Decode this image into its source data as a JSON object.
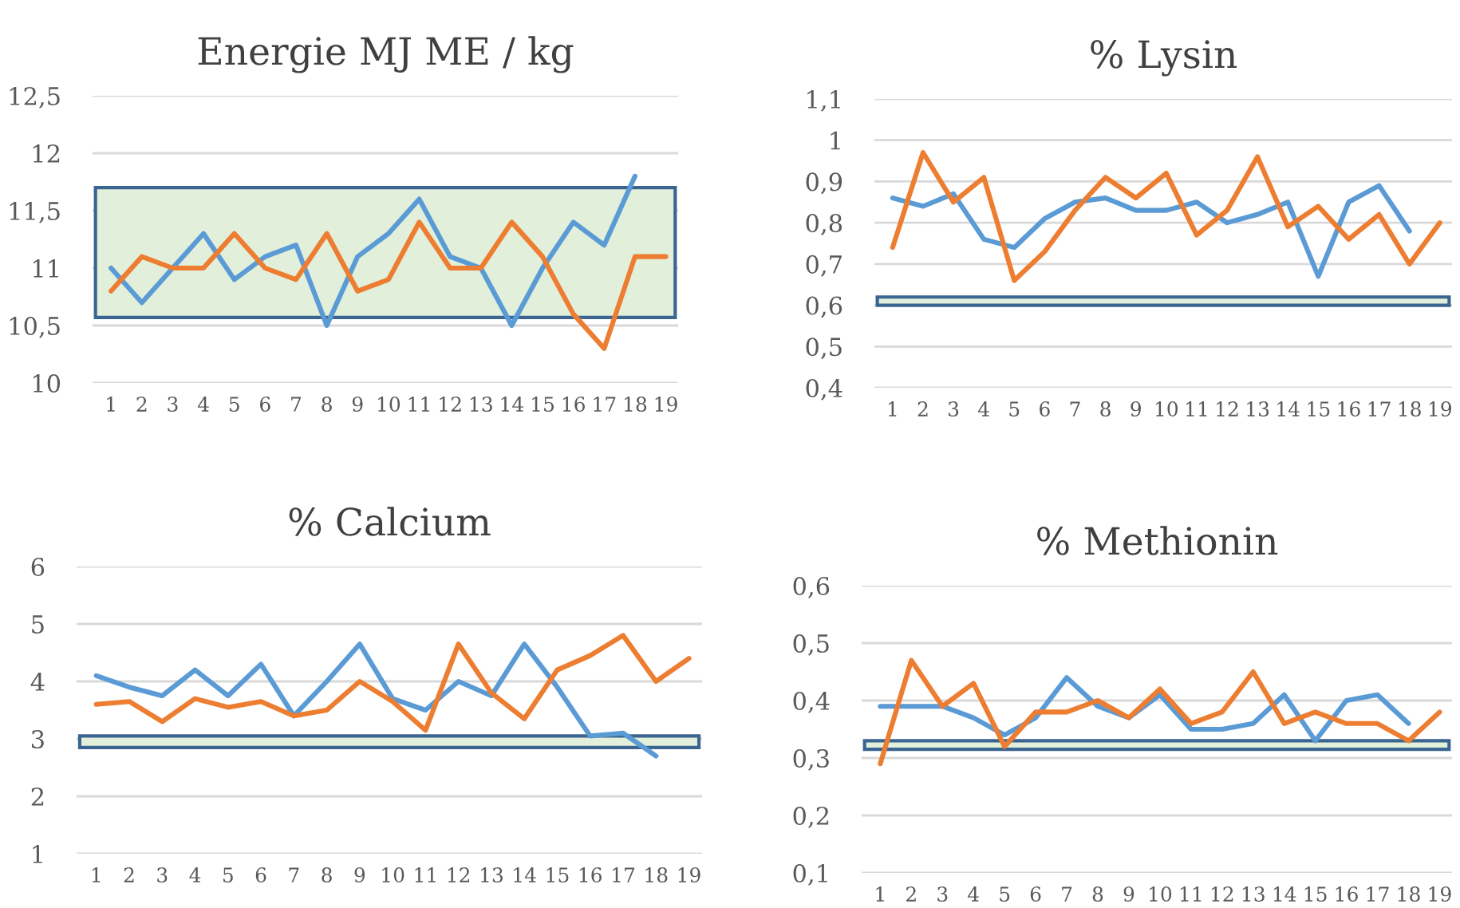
{
  "chart_data": [
    {
      "type": "line",
      "title": "Energie MJ ME / kg",
      "categories": [
        "1",
        "2",
        "3",
        "4",
        "5",
        "6",
        "7",
        "8",
        "9",
        "10",
        "11",
        "12",
        "13",
        "14",
        "15",
        "16",
        "17",
        "18",
        "19"
      ],
      "series": [
        {
          "color": "#5b9bd5",
          "values": [
            11.0,
            10.7,
            11.0,
            11.3,
            10.9,
            11.1,
            11.2,
            10.5,
            11.1,
            11.3,
            11.6,
            11.1,
            11.0,
            10.5,
            11.0,
            11.4,
            11.2,
            11.8,
            null
          ]
        },
        {
          "color": "#ed7d31",
          "values": [
            10.8,
            11.1,
            11.0,
            11.0,
            11.3,
            11.0,
            10.9,
            11.3,
            10.8,
            10.9,
            11.4,
            11.0,
            11.0,
            11.4,
            11.1,
            10.6,
            10.3,
            11.1,
            11.1
          ]
        }
      ],
      "ylim": [
        10,
        12.5
      ],
      "yticks": [
        10,
        {
          "value": 10.5,
          "label": "10,5"
        },
        11,
        {
          "value": 11.5,
          "label": "11,5"
        },
        12,
        {
          "value": 12.5,
          "label": "12,5"
        }
      ],
      "bands": [
        {
          "axis": "y",
          "from": 10.57,
          "to": 11.7,
          "color": "#e2efda"
        }
      ],
      "grid": "y",
      "legend": false
    },
    {
      "type": "line",
      "title": "% Lysin",
      "categories": [
        "1",
        "2",
        "3",
        "4",
        "5",
        "6",
        "7",
        "8",
        "9",
        "10",
        "11",
        "12",
        "13",
        "14",
        "15",
        "16",
        "17",
        "18",
        "19"
      ],
      "series": [
        {
          "color": "#5b9bd5",
          "values": [
            0.86,
            0.84,
            0.87,
            0.76,
            0.74,
            0.81,
            0.85,
            0.86,
            0.83,
            0.83,
            0.85,
            0.8,
            0.82,
            0.85,
            0.67,
            0.85,
            0.89,
            0.78,
            null
          ]
        },
        {
          "color": "#ed7d31",
          "values": [
            0.74,
            0.97,
            0.85,
            0.91,
            0.66,
            0.73,
            0.83,
            0.91,
            0.86,
            0.92,
            0.77,
            0.83,
            0.96,
            0.79,
            0.84,
            0.76,
            0.82,
            0.7,
            0.8
          ]
        }
      ],
      "ylim": [
        0.4,
        1.1
      ],
      "yticks": [
        {
          "value": 0.4,
          "label": "0,4"
        },
        {
          "value": 0.5,
          "label": "0,5"
        },
        {
          "value": 0.6,
          "label": "0,6"
        },
        {
          "value": 0.7,
          "label": "0,7"
        },
        {
          "value": 0.8,
          "label": "0,8"
        },
        {
          "value": 0.9,
          "label": "0,9"
        },
        1,
        {
          "value": 1.1,
          "label": "1,1"
        }
      ],
      "bands": [
        {
          "axis": "y",
          "from": 0.6,
          "to": 0.62,
          "color": "#e2efda"
        }
      ],
      "grid": "y",
      "legend": false
    },
    {
      "type": "line",
      "title": "% Calcium",
      "categories": [
        "1",
        "2",
        "3",
        "4",
        "5",
        "6",
        "7",
        "8",
        "9",
        "10",
        "11",
        "12",
        "13",
        "14",
        "15",
        "16",
        "17",
        "18",
        "19"
      ],
      "series": [
        {
          "color": "#5b9bd5",
          "values": [
            4.1,
            3.9,
            3.75,
            4.2,
            3.75,
            4.3,
            3.4,
            4.0,
            4.65,
            3.7,
            3.5,
            4.0,
            3.75,
            4.65,
            3.9,
            3.05,
            3.1,
            2.7,
            null
          ]
        },
        {
          "color": "#ed7d31",
          "values": [
            3.6,
            3.65,
            3.3,
            3.7,
            3.55,
            3.65,
            3.4,
            3.5,
            4.0,
            3.65,
            3.15,
            4.65,
            3.8,
            3.35,
            4.2,
            4.45,
            4.8,
            4.0,
            4.4
          ]
        }
      ],
      "ylim": [
        1,
        6
      ],
      "yticks": [
        1,
        2,
        3,
        4,
        5,
        6
      ],
      "bands": [
        {
          "axis": "y",
          "from": 2.85,
          "to": 3.05,
          "color": "#e2efda"
        }
      ],
      "grid": "y",
      "legend": false
    },
    {
      "type": "line",
      "title": "% Methionin",
      "categories": [
        "1",
        "2",
        "3",
        "4",
        "5",
        "6",
        "7",
        "8",
        "9",
        "10",
        "11",
        "12",
        "13",
        "14",
        "15",
        "16",
        "17",
        "18",
        "19"
      ],
      "series": [
        {
          "color": "#5b9bd5",
          "values": [
            0.39,
            0.39,
            0.39,
            0.37,
            0.34,
            0.37,
            0.44,
            0.39,
            0.37,
            0.41,
            0.35,
            0.35,
            0.36,
            0.41,
            0.33,
            0.4,
            0.41,
            0.36,
            null
          ]
        },
        {
          "color": "#ed7d31",
          "values": [
            0.29,
            0.47,
            0.39,
            0.43,
            0.32,
            0.38,
            0.38,
            0.4,
            0.37,
            0.42,
            0.36,
            0.38,
            0.45,
            0.36,
            0.38,
            0.36,
            0.36,
            0.33,
            0.38
          ]
        }
      ],
      "ylim": [
        0.1,
        0.6
      ],
      "yticks": [
        {
          "value": 0.1,
          "label": "0,1"
        },
        {
          "value": 0.2,
          "label": "0,2"
        },
        {
          "value": 0.3,
          "label": "0,3"
        },
        {
          "value": 0.4,
          "label": "0,4"
        },
        {
          "value": 0.5,
          "label": "0,5"
        },
        {
          "value": 0.6,
          "label": "0,6"
        }
      ],
      "bands": [
        {
          "axis": "y",
          "from": 0.315,
          "to": 0.33,
          "color": "#e2efda"
        }
      ],
      "grid": "y",
      "legend": false
    }
  ]
}
